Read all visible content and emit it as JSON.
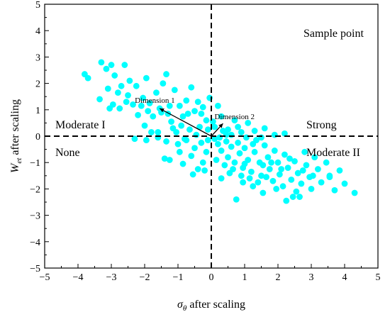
{
  "chart_data": {
    "type": "scatter",
    "xlabel": {
      "symbol": "σ",
      "subscript": "θ",
      "text": " after scaling"
    },
    "ylabel": {
      "symbol": "W",
      "subscript": "et",
      "text": " after scaling"
    },
    "xlim": [
      -5,
      5
    ],
    "ylim": [
      -5,
      5
    ],
    "xticks": [
      "−5",
      "−4",
      "−3",
      "−2",
      "−1",
      "0",
      "1",
      "2",
      "3",
      "4",
      "5"
    ],
    "yticks": [
      "−5",
      "−4",
      "−3",
      "−2",
      "−1",
      "0",
      "1",
      "2",
      "3",
      "4",
      "5"
    ],
    "grid": false,
    "legend_text": "Sample point",
    "marker_color": "#00ffff",
    "quadrant_labels": {
      "upper_left": "Moderate I",
      "upper_right": "Strong",
      "lower_left": "None",
      "lower_right": "Moderate II"
    },
    "vectors": [
      {
        "label": "Dimension 1",
        "x": -1.55,
        "y": 1.05
      },
      {
        "label": "Dimension 2",
        "x": 0.35,
        "y": 0.48
      }
    ],
    "series": [
      {
        "values": [
          [
            -3.8,
            2.35
          ],
          [
            -3.7,
            2.2
          ],
          [
            -3.3,
            2.8
          ],
          [
            -3.15,
            2.55
          ],
          [
            -3.1,
            1.8
          ],
          [
            -3.0,
            2.7
          ],
          [
            -2.95,
            1.2
          ],
          [
            -2.9,
            2.3
          ],
          [
            -2.8,
            1.65
          ],
          [
            -2.7,
            1.9
          ],
          [
            -2.6,
            2.7
          ],
          [
            -2.55,
            1.3
          ],
          [
            -2.5,
            1.55
          ],
          [
            -2.45,
            2.1
          ],
          [
            -2.35,
            1.2
          ],
          [
            -2.25,
            1.9
          ],
          [
            -2.1,
            1.15
          ],
          [
            -2.0,
            0.4
          ],
          [
            -1.95,
            2.2
          ],
          [
            -1.85,
            1.25
          ],
          [
            -1.75,
            0.75
          ],
          [
            -1.65,
            1.65
          ],
          [
            -1.6,
            0.15
          ],
          [
            -1.5,
            0.9
          ],
          [
            -1.45,
            2.0
          ],
          [
            -1.35,
            2.35
          ],
          [
            -1.25,
            1.15
          ],
          [
            -1.2,
            0.55
          ],
          [
            -1.1,
            1.75
          ],
          [
            -1.05,
            0.15
          ],
          [
            -0.95,
            1.15
          ],
          [
            -0.85,
            0.75
          ],
          [
            -0.75,
            1.35
          ],
          [
            -0.65,
            0.25
          ],
          [
            -0.6,
            1.85
          ],
          [
            -0.5,
            0.95
          ],
          [
            -0.4,
            1.3
          ],
          [
            -0.35,
            0.35
          ],
          [
            -0.25,
            1.1
          ],
          [
            -0.15,
            0.6
          ],
          [
            -0.05,
            1.45
          ],
          [
            -3.35,
            1.4
          ],
          [
            -3.05,
            1.05
          ],
          [
            -2.75,
            1.05
          ],
          [
            -2.2,
            0.8
          ],
          [
            -2.05,
            1.45
          ],
          [
            -1.9,
            0.95
          ],
          [
            -1.8,
            0.15
          ],
          [
            -1.55,
            1.05
          ],
          [
            -1.3,
            0.85
          ],
          [
            -1.15,
            0.3
          ],
          [
            -0.9,
            0.4
          ],
          [
            -0.7,
            0.85
          ],
          [
            -0.45,
            0.05
          ],
          [
            -0.3,
            0.85
          ],
          [
            -0.1,
            0.25
          ],
          [
            -2.3,
            -0.1
          ],
          [
            -1.95,
            -0.15
          ],
          [
            -1.6,
            -0.05
          ],
          [
            -1.35,
            -0.2
          ],
          [
            -1.0,
            -0.3
          ],
          [
            -0.75,
            -0.15
          ],
          [
            -0.5,
            -0.45
          ],
          [
            -0.3,
            -0.25
          ],
          [
            -0.15,
            -0.6
          ],
          [
            -1.4,
            -0.85
          ],
          [
            -1.25,
            -0.9
          ],
          [
            -0.85,
            -1.05
          ],
          [
            -0.6,
            -0.75
          ],
          [
            -0.4,
            -1.25
          ],
          [
            -0.2,
            -1.3
          ],
          [
            -0.95,
            -0.6
          ],
          [
            -0.55,
            -1.45
          ],
          [
            -0.25,
            -1.0
          ],
          [
            -0.8,
            -0.1
          ],
          [
            -0.1,
            -0.15
          ],
          [
            0.1,
            0.35
          ],
          [
            0.3,
            0.75
          ],
          [
            0.5,
            0.25
          ],
          [
            0.7,
            0.6
          ],
          [
            0.9,
            0.15
          ],
          [
            1.1,
            0.5
          ],
          [
            1.3,
            0.2
          ],
          [
            1.6,
            0.3
          ],
          [
            1.9,
            0.05
          ],
          [
            2.2,
            0.1
          ],
          [
            0.2,
            1.15
          ],
          [
            0.45,
            0.05
          ],
          [
            1.5,
            -0.05
          ],
          [
            0.1,
            -0.1
          ],
          [
            0.2,
            -0.3
          ],
          [
            0.3,
            -0.55
          ],
          [
            0.45,
            -0.2
          ],
          [
            0.5,
            -0.8
          ],
          [
            0.6,
            -0.4
          ],
          [
            0.7,
            -1.0
          ],
          [
            0.8,
            -0.25
          ],
          [
            0.85,
            -0.65
          ],
          [
            0.95,
            -1.2
          ],
          [
            1.0,
            -0.45
          ],
          [
            1.1,
            -0.9
          ],
          [
            1.2,
            -1.35
          ],
          [
            1.3,
            -0.6
          ],
          [
            1.35,
            -0.15
          ],
          [
            1.45,
            -1.0
          ],
          [
            1.5,
            -1.5
          ],
          [
            1.6,
            -0.35
          ],
          [
            1.7,
            -0.8
          ],
          [
            1.75,
            -1.25
          ],
          [
            1.85,
            -1.7
          ],
          [
            1.9,
            -0.55
          ],
          [
            2.0,
            -1.0
          ],
          [
            2.05,
            -1.45
          ],
          [
            2.15,
            -1.9
          ],
          [
            2.2,
            -0.7
          ],
          [
            2.3,
            -1.2
          ],
          [
            2.4,
            -1.65
          ],
          [
            2.5,
            -0.95
          ],
          [
            2.55,
            -2.1
          ],
          [
            2.6,
            -1.4
          ],
          [
            2.7,
            -1.8
          ],
          [
            2.8,
            -0.6
          ],
          [
            2.85,
            -1.1
          ],
          [
            2.95,
            -1.55
          ],
          [
            3.0,
            -2.0
          ],
          [
            3.1,
            -0.8
          ],
          [
            3.2,
            -1.25
          ],
          [
            3.3,
            -1.75
          ],
          [
            3.45,
            -1.0
          ],
          [
            3.55,
            -1.55
          ],
          [
            3.7,
            -2.05
          ],
          [
            3.85,
            -1.3
          ],
          [
            4.0,
            -1.8
          ],
          [
            4.3,
            -2.15
          ],
          [
            3.55,
            -1.5
          ],
          [
            2.45,
            -2.3
          ],
          [
            0.3,
            -1.6
          ],
          [
            0.55,
            -1.4
          ],
          [
            0.75,
            -2.4
          ],
          [
            0.95,
            -1.75
          ],
          [
            1.25,
            -1.9
          ],
          [
            1.55,
            -2.15
          ],
          [
            2.25,
            -2.45
          ],
          [
            2.65,
            -2.3
          ],
          [
            0.15,
            -0.9
          ],
          [
            0.4,
            -1.1
          ],
          [
            0.65,
            -1.25
          ],
          [
            0.9,
            -1.5
          ],
          [
            1.15,
            -1.6
          ],
          [
            1.4,
            -1.75
          ],
          [
            1.65,
            -1.55
          ],
          [
            1.95,
            -2.0
          ],
          [
            0.25,
            -0.05
          ],
          [
            0.6,
            0.05
          ],
          [
            1.05,
            -0.05
          ],
          [
            1.25,
            -0.3
          ],
          [
            0.8,
            0.35
          ],
          [
            0.35,
            0.2
          ],
          [
            0.05,
            0.55
          ],
          [
            1.0,
            -1.05
          ],
          [
            1.55,
            -1.1
          ],
          [
            1.8,
            -1.0
          ],
          [
            2.1,
            -1.25
          ],
          [
            2.35,
            -0.85
          ],
          [
            2.75,
            -1.3
          ],
          [
            3.05,
            -1.5
          ]
        ]
      }
    ]
  }
}
